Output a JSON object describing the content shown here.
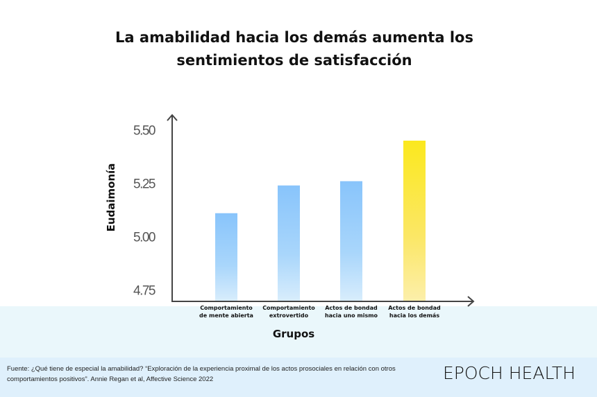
{
  "chart_data": {
    "type": "bar",
    "title": "La amabilidad hacia los demás aumenta los sentimientos de satisfacción",
    "title_lines": [
      "La amabilidad hacia los demás aumenta los",
      "sentimientos de satisfacción"
    ],
    "xlabel": "Grupos",
    "ylabel": "Eudaimonía",
    "categories": [
      [
        "Comportamiento",
        "de mente abierta"
      ],
      [
        "Comportamiento",
        "extrovertido"
      ],
      [
        "Actos de bondad",
        "hacia uno mismo"
      ],
      [
        "Actos de bondad",
        "hacia los demás"
      ]
    ],
    "values": [
      5.11,
      5.24,
      5.26,
      5.45
    ],
    "bar_colors": [
      "#88c4fb",
      "#88c4fb",
      "#88c4fb",
      "#fbe81e"
    ],
    "yticks": [
      "5.50",
      "5.25",
      "5.00",
      "4.75"
    ],
    "ylim": [
      4.7,
      5.55
    ],
    "grid": false
  },
  "footer": {
    "source_lines": [
      "Fuente: ¿Qué tiene de especial la amabilidad? “Exploración de la experiencia proximal de los actos prosociales en relación con otros",
      "comportamientos positivos”. Annie Regan et al, Affective Science 2022"
    ],
    "brand": "EPOCH HEALTH"
  }
}
